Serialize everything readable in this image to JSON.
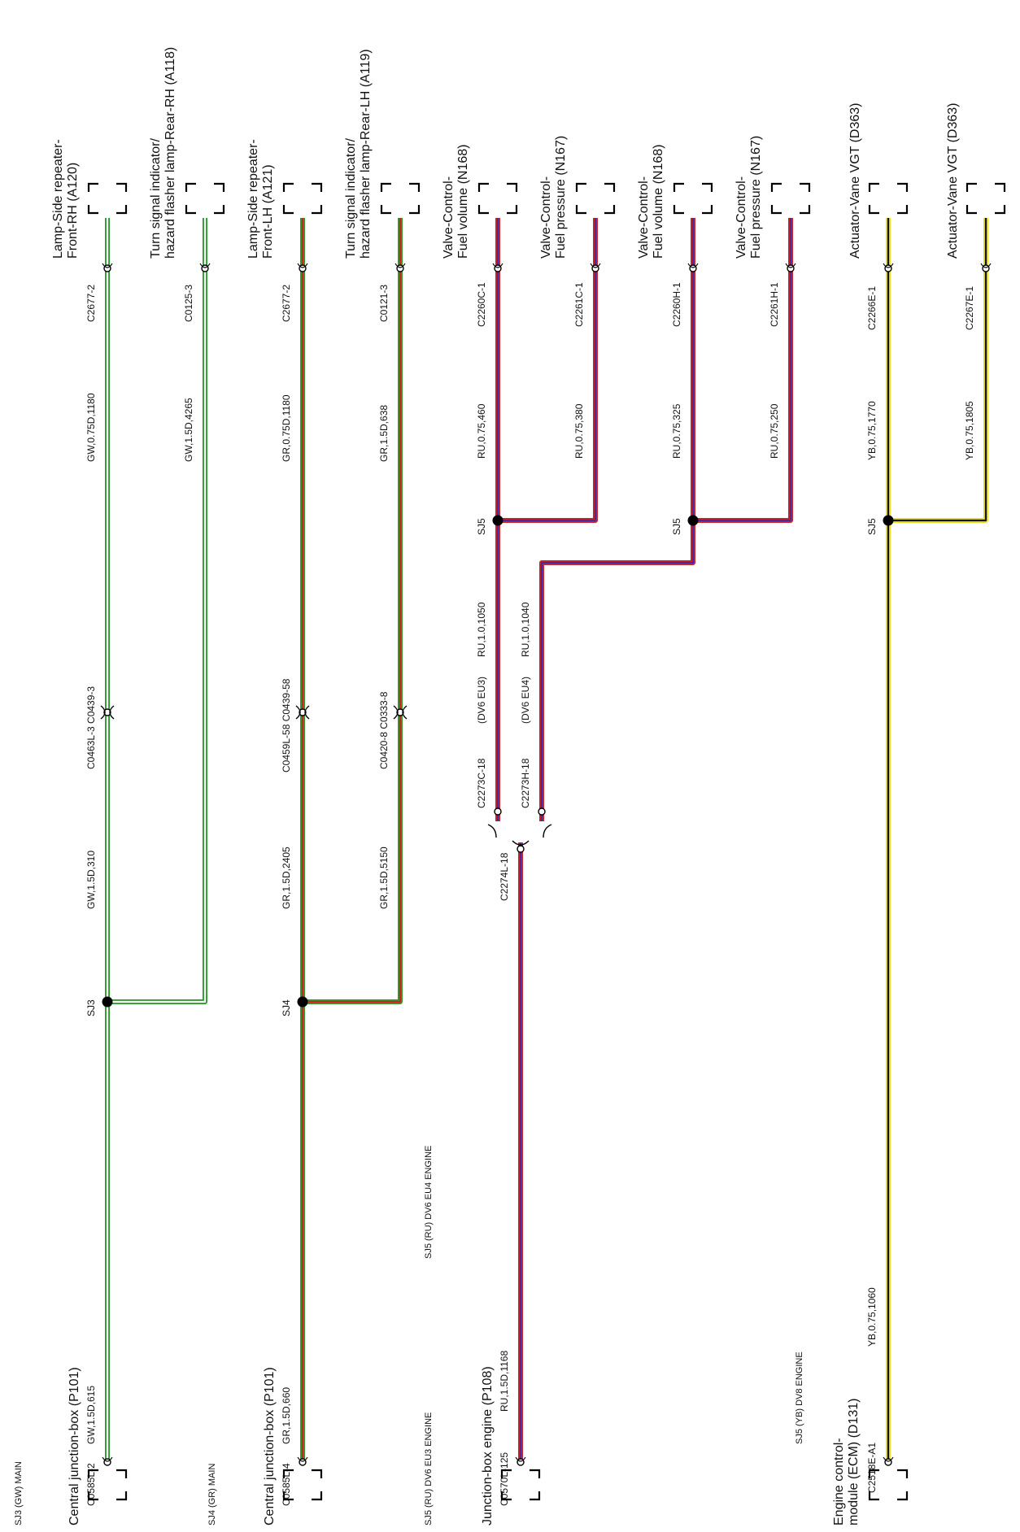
{
  "colors": {
    "GW": {
      "outer": "#2e9a2e",
      "inner": "#ffffff"
    },
    "GR": {
      "outer": "#2e9a2e",
      "inner": "#d42020"
    },
    "RU": {
      "outer": "#d42020",
      "inner": "#3b2fa8"
    },
    "YB": {
      "outer": "#e8e020",
      "inner": "#111111"
    }
  },
  "groups": [
    {
      "id": "gw",
      "group_label": "SJ3 (GW) MAIN",
      "source": {
        "name": "Central junction-box (P101)",
        "connector": "C0585L-2",
        "wire": "GW,1.5D,615"
      },
      "splice": {
        "label": "SJ3",
        "wire_below": "GW,1.5D,310"
      },
      "inline": {
        "label": "C0463L-3  C0439-3"
      },
      "branches": [
        {
          "component": [
            "Lamp-Side repeater-",
            "Front-RH (A120)"
          ],
          "connector": "C2677-2",
          "wire": "GW,0.75D,1180"
        },
        {
          "component": [
            "Turn signal indicator/",
            "hazard flasher lamp-Rear-RH (A118)"
          ],
          "connector": "C0125-3",
          "wire": "GW,1.5D,4265"
        }
      ]
    },
    {
      "id": "gr",
      "group_label": "SJ4 (GR) MAIN",
      "source": {
        "name": "Central junction-box (P101)",
        "connector": "C0585L-4",
        "wire": "GR,1.5D,660"
      },
      "splice": {
        "label": "SJ4",
        "wire_below": "GR,1.5D,2405",
        "wire_below_2": "GR,1.5D,5150"
      },
      "inline": {
        "label": "C0459L-58  C0439-58",
        "label_2": "C0420-8  C0333-8"
      },
      "branches": [
        {
          "component": [
            "Lamp-Side repeater-",
            "Front-LH (A121)"
          ],
          "connector": "C2677-2",
          "wire": "GR,0.75D,1180"
        },
        {
          "component": [
            "Turn signal indicator/",
            "hazard flasher lamp-Rear-LH (A119)"
          ],
          "connector": "C0121-3",
          "wire": "GR,1.5D,638"
        }
      ]
    },
    {
      "id": "ru",
      "group_labels": [
        "SJ5 (RU) DV6 EU3 ENGINE",
        "SJ5 (RU) DV6 EU4 ENGINE"
      ],
      "source": {
        "name": "Junction-box engine (P108)",
        "connector": "C0570L-125",
        "wire": "RU,1.5D,1168"
      },
      "connector_join": "C2274L-18",
      "legs": [
        {
          "connector": "C2273C-18",
          "variant": "(DV6 EU3)",
          "wire": "RU,1.0,1050"
        },
        {
          "connector": "C2273H-18",
          "variant": "(DV6 EU4)",
          "wire": "RU,1.0,1040"
        }
      ],
      "splices": [
        "SJ5",
        "SJ5"
      ],
      "branches": [
        {
          "component": [
            "Valve-Control-",
            "Fuel volume (N168)"
          ],
          "connector": "C2260C-1",
          "wire": "RU,0.75,460"
        },
        {
          "component": [
            "Valve-Control-",
            "Fuel pressure (N167)"
          ],
          "connector": "C2261C-1",
          "wire": "RU,0.75,380"
        },
        {
          "component": [
            "Valve-Control-",
            "Fuel volume (N168)"
          ],
          "connector": "C2260H-1",
          "wire": "RU,0.75,325"
        },
        {
          "component": [
            "Valve-Control-",
            "Fuel pressure (N167)"
          ],
          "connector": "C2261H-1",
          "wire": "RU,0.75,250"
        }
      ]
    },
    {
      "id": "yb",
      "group_label": "SJ5 (YB) DV8 ENGINE",
      "source": {
        "name": [
          "Engine control-",
          "module (ECM) (D131)"
        ],
        "connector": "C2518E-A1",
        "wire": "YB,0.75,1060"
      },
      "splice": {
        "label": "SJ5"
      },
      "branches": [
        {
          "component": [
            "Actuator-Vane VGT (D363)"
          ],
          "connector": "C2266E-1",
          "wire": "YB,0.75,1770"
        },
        {
          "component": [
            "Actuator-Vane VGT (D363)"
          ],
          "connector": "C2267E-1",
          "wire": "YB,0.75,1805"
        }
      ]
    }
  ]
}
